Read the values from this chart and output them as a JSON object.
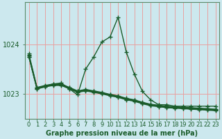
{
  "title": "Graphe pression niveau de la mer (hPa)",
  "bg_color": "#cce8ee",
  "grid_color": "#f0c0c0",
  "line_color": "#1a5c2a",
  "marker": "+",
  "markersize": 4,
  "linewidth": 1.0,
  "xlabel_fontsize": 6,
  "ylabel_fontsize": 7,
  "title_fontsize": 7,
  "yticks": [
    1023,
    1024
  ],
  "xlim": [
    -0.5,
    23.5
  ],
  "ylim": [
    1022.5,
    1024.85
  ],
  "series_peak": [
    1023.75,
    1023.1,
    1023.15,
    1023.2,
    1023.22,
    1023.1,
    1022.98,
    1023.5,
    1023.75,
    1024.05,
    1024.15,
    1024.55,
    1023.85,
    1023.4,
    1023.05,
    1022.88,
    1022.78,
    1022.78,
    1022.75,
    1022.75,
    1022.75,
    1022.75,
    1022.75,
    1022.75
  ],
  "series_flat1": [
    1023.75,
    1023.1,
    1023.14,
    1023.17,
    1023.17,
    1023.1,
    1023.03,
    1023.06,
    1023.03,
    1023.0,
    1022.96,
    1022.93,
    1022.88,
    1022.85,
    1022.8,
    1022.76,
    1022.74,
    1022.72,
    1022.71,
    1022.7,
    1022.69,
    1022.68,
    1022.67,
    1022.66
  ],
  "series_flat2": [
    1023.77,
    1023.11,
    1023.15,
    1023.18,
    1023.18,
    1023.11,
    1023.04,
    1023.07,
    1023.04,
    1023.01,
    1022.97,
    1022.94,
    1022.89,
    1022.86,
    1022.81,
    1022.77,
    1022.75,
    1022.73,
    1022.72,
    1022.71,
    1022.7,
    1022.69,
    1022.68,
    1022.67
  ],
  "series_flat3": [
    1023.79,
    1023.12,
    1023.16,
    1023.19,
    1023.19,
    1023.12,
    1023.05,
    1023.08,
    1023.05,
    1023.02,
    1022.98,
    1022.95,
    1022.9,
    1022.87,
    1022.82,
    1022.78,
    1022.76,
    1022.74,
    1022.73,
    1022.72,
    1022.71,
    1022.7,
    1022.69,
    1022.68
  ],
  "series_flat4": [
    1023.81,
    1023.13,
    1023.17,
    1023.2,
    1023.2,
    1023.13,
    1023.06,
    1023.09,
    1023.06,
    1023.03,
    1022.99,
    1022.96,
    1022.91,
    1022.88,
    1022.83,
    1022.79,
    1022.77,
    1022.75,
    1022.74,
    1022.73,
    1022.72,
    1022.71,
    1022.7,
    1022.69
  ]
}
